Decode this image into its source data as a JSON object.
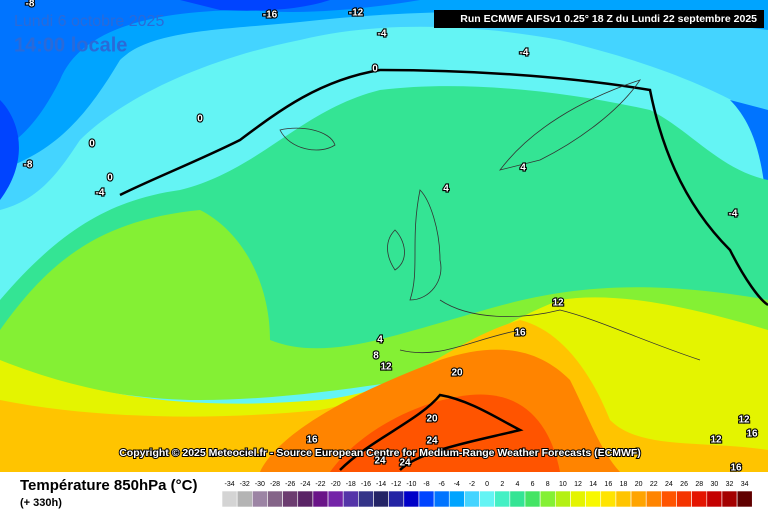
{
  "header": {
    "date": "Lundi 6 octobre 2025",
    "time": "14:00 locale",
    "run": "Run ECMWF AIFSv1 0.25° 18 Z du Lundi 22 septembre 2025"
  },
  "copyright": "Copyright © 2025 Meteociel.fr - Source European Centre for Medium-Range Weather Forecasts (ECMWF)",
  "footer": {
    "title": "Température 850hPa (°C)",
    "lead": "(+ 330h)"
  },
  "contour_labels": [
    -8,
    -16,
    -12,
    -4,
    -4,
    0,
    0,
    0,
    0,
    -4,
    -8,
    -4,
    4,
    4,
    4,
    8,
    12,
    12,
    16,
    20,
    20,
    24,
    16,
    24,
    24,
    12,
    12,
    16,
    16
  ],
  "colorbar": {
    "values": [
      -34,
      -32,
      -30,
      -28,
      -26,
      -24,
      -22,
      -20,
      -18,
      -16,
      -14,
      -12,
      -10,
      -8,
      -6,
      -4,
      -2,
      0,
      2,
      4,
      6,
      8,
      10,
      12,
      14,
      16,
      18,
      20,
      22,
      24,
      26,
      28,
      30,
      32,
      34
    ],
    "colors": [
      "#d4d4d4",
      "#b4b4b4",
      "#9c84a4",
      "#846488",
      "#6c3c70",
      "#5a2466",
      "#6a1488",
      "#7424a8",
      "#5434a8",
      "#343488",
      "#242466",
      "#2424a4",
      "#0000c8",
      "#0044ff",
      "#0074ff",
      "#00a4ff",
      "#44d4ff",
      "#64f4f4",
      "#44f0c4",
      "#34e494",
      "#44e464",
      "#84f034",
      "#b4f014",
      "#e4f400",
      "#f8f800",
      "#ffe400",
      "#ffc400",
      "#ffa400",
      "#ff8400",
      "#ff5400",
      "#f43400",
      "#e41400",
      "#c40000",
      "#a40000",
      "#600000"
    ]
  }
}
